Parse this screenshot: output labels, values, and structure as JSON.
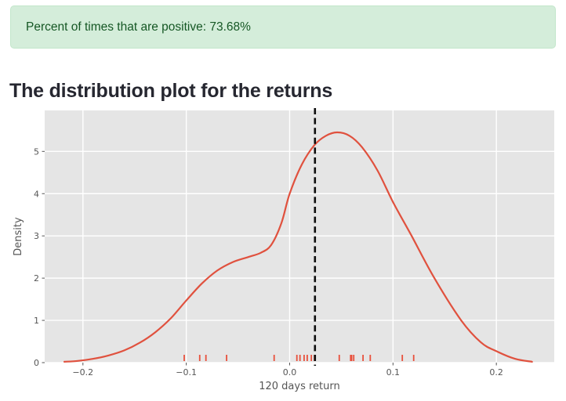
{
  "alert": {
    "text": "Percent of times that are positive: 73.68%",
    "type": "success"
  },
  "heading": {
    "text": "The distribution plot for the returns"
  },
  "colors": {
    "alert_bg": "#d4edda",
    "alert_border": "#c3e6cb",
    "alert_text": "#155724",
    "heading_text": "#262730",
    "plot_bg": "#e5e5e5",
    "grid": "#ffffff",
    "curve": "#e0513e",
    "rug": "#e8503c",
    "mean_line": "#0d0d0d",
    "tick_text": "#555555",
    "axis_text": "#555555"
  },
  "chart_data": {
    "type": "line",
    "subtype": "kde-density-with-rug",
    "title": "",
    "xlabel": "120 days return",
    "ylabel": "Density",
    "xlim": [
      -0.237,
      0.256
    ],
    "ylim": [
      0,
      5.97
    ],
    "grid": true,
    "x_ticks": [
      -0.2,
      -0.1,
      0.0,
      0.1,
      0.2
    ],
    "x_tick_labels": [
      "−0.2",
      "−0.1",
      "0.0",
      "0.1",
      "0.2"
    ],
    "y_ticks": [
      0,
      1,
      2,
      3,
      4,
      5
    ],
    "y_tick_labels": [
      "0",
      "1",
      "2",
      "3",
      "4",
      "5"
    ],
    "series": [
      {
        "name": "kde",
        "points": [
          [
            -0.218,
            0.02
          ],
          [
            -0.205,
            0.04
          ],
          [
            -0.19,
            0.09
          ],
          [
            -0.175,
            0.17
          ],
          [
            -0.16,
            0.29
          ],
          [
            -0.145,
            0.47
          ],
          [
            -0.13,
            0.72
          ],
          [
            -0.115,
            1.05
          ],
          [
            -0.1,
            1.47
          ],
          [
            -0.085,
            1.87
          ],
          [
            -0.07,
            2.18
          ],
          [
            -0.055,
            2.38
          ],
          [
            -0.04,
            2.5
          ],
          [
            -0.028,
            2.6
          ],
          [
            -0.018,
            2.78
          ],
          [
            -0.008,
            3.3
          ],
          [
            0.0,
            4.0
          ],
          [
            0.012,
            4.7
          ],
          [
            0.024,
            5.15
          ],
          [
            0.035,
            5.37
          ],
          [
            0.046,
            5.45
          ],
          [
            0.058,
            5.37
          ],
          [
            0.07,
            5.1
          ],
          [
            0.085,
            4.55
          ],
          [
            0.1,
            3.8
          ],
          [
            0.118,
            3.0
          ],
          [
            0.14,
            2.0
          ],
          [
            0.166,
            1.0
          ],
          [
            0.185,
            0.48
          ],
          [
            0.2,
            0.27
          ],
          [
            0.218,
            0.09
          ],
          [
            0.2345,
            0.02
          ]
        ]
      }
    ],
    "rug_values": [
      -0.102,
      -0.087,
      -0.081,
      -0.061,
      -0.015,
      0.007,
      0.01,
      0.014,
      0.017,
      0.021,
      0.024,
      0.048,
      0.059,
      0.06,
      0.062,
      0.071,
      0.078,
      0.109,
      0.12
    ],
    "mean_line_x": 0.0245,
    "mean_line_style": "dashed",
    "legend": null
  }
}
